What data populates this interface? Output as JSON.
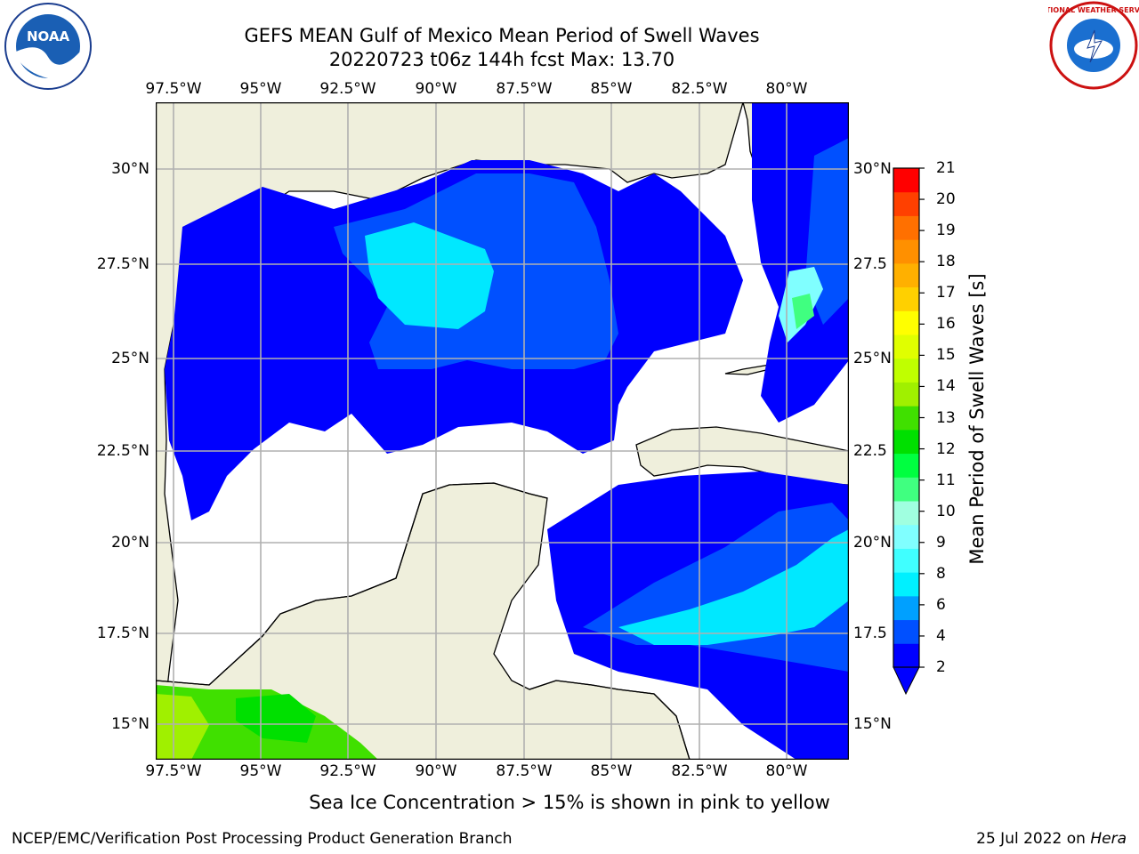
{
  "title_line1": "GEFS MEAN Gulf of Mexico Mean Period of Swell Waves",
  "title_line2": "20220723 t06z 144h fcst   Max: 13.70",
  "lon_labels": [
    "97.5°W",
    "95°W",
    "92.5°W",
    "90°W",
    "87.5°W",
    "85°W",
    "82.5°W",
    "80°W"
  ],
  "lat_labels": [
    "30°N",
    "27.5°N",
    "25°N",
    "22.5°N",
    "20°N",
    "17.5°N",
    "15°N"
  ],
  "right_lat_labels": [
    "30°N",
    "27.5",
    "25°N",
    "22.5",
    "20°N",
    "17.5",
    "15°N"
  ],
  "colorbar": {
    "label": "Mean Period of Swell Waves [s]",
    "ticks": [
      "2",
      "4",
      "6",
      "8",
      "9",
      "10",
      "11",
      "12",
      "13",
      "14",
      "15",
      "16",
      "17",
      "18",
      "19",
      "20",
      "21"
    ],
    "colors": [
      "#0000ff",
      "#0050ff",
      "#00a0ff",
      "#00f0ff",
      "#40ffff",
      "#80ffff",
      "#a0ffe0",
      "#40ff80",
      "#00ff40",
      "#00e000",
      "#40e000",
      "#a0f000",
      "#c0ff00",
      "#e0ff00",
      "#ffff00",
      "#ffd000",
      "#ffb000",
      "#ff9000",
      "#ff7000",
      "#ff4000",
      "#ff0000"
    ]
  },
  "colors": {
    "land": "#efefdc",
    "ocean_none": "#ffffff",
    "grid": "#b0b0b0"
  },
  "note": "Sea Ice Concentration > 15% is shown in pink to yellow",
  "footer_left": "NCEP/EMC/Verification Post Processing Product Generation Branch",
  "footer_date": "25 Jul 2022 on",
  "footer_machine": "Hera",
  "logos": {
    "noaa": "NOAA",
    "nws": "NATIONAL WEATHER SERVICE"
  }
}
